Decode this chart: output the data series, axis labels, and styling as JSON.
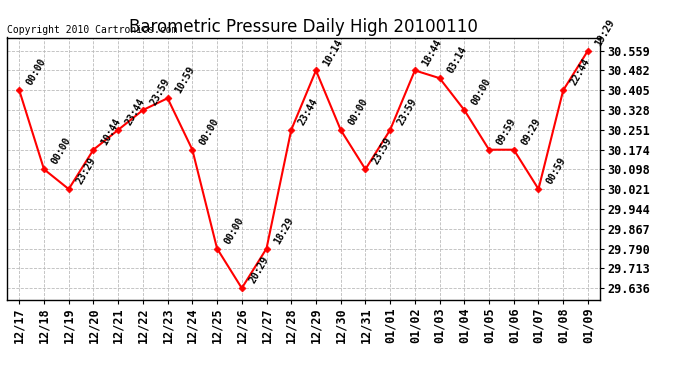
{
  "title": "Barometric Pressure Daily High 20100110",
  "copyright": "Copyright 2010 Cartronics.com",
  "background_color": "#ffffff",
  "plot_bg_color": "#ffffff",
  "line_color": "#ff0000",
  "marker_color": "#ff0000",
  "grid_color": "#bbbbbb",
  "data_points": [
    {
      "date": "12/17",
      "value": 30.405,
      "label": "00:00"
    },
    {
      "date": "12/18",
      "value": 30.098,
      "label": "00:00"
    },
    {
      "date": "12/19",
      "value": 30.021,
      "label": "23:29"
    },
    {
      "date": "12/20",
      "value": 30.174,
      "label": "10:44"
    },
    {
      "date": "12/21",
      "value": 30.251,
      "label": "23:44"
    },
    {
      "date": "12/22",
      "value": 30.328,
      "label": "23:59"
    },
    {
      "date": "12/23",
      "value": 30.374,
      "label": "10:59"
    },
    {
      "date": "12/24",
      "value": 30.174,
      "label": "00:00"
    },
    {
      "date": "12/25",
      "value": 29.79,
      "label": "00:00"
    },
    {
      "date": "12/26",
      "value": 29.636,
      "label": "20:29"
    },
    {
      "date": "12/27",
      "value": 29.79,
      "label": "18:29"
    },
    {
      "date": "12/28",
      "value": 30.251,
      "label": "23:44"
    },
    {
      "date": "12/29",
      "value": 30.482,
      "label": "10:14"
    },
    {
      "date": "12/30",
      "value": 30.251,
      "label": "00:00"
    },
    {
      "date": "12/31",
      "value": 30.098,
      "label": "23:59"
    },
    {
      "date": "01/01",
      "value": 30.251,
      "label": "23:59"
    },
    {
      "date": "01/02",
      "value": 30.482,
      "label": "18:44"
    },
    {
      "date": "01/03",
      "value": 30.452,
      "label": "03:14"
    },
    {
      "date": "01/04",
      "value": 30.328,
      "label": "00:00"
    },
    {
      "date": "01/05",
      "value": 30.174,
      "label": "09:59"
    },
    {
      "date": "01/06",
      "value": 30.174,
      "label": "09:29"
    },
    {
      "date": "01/07",
      "value": 30.021,
      "label": "00:59"
    },
    {
      "date": "01/08",
      "value": 30.405,
      "label": "22:44"
    },
    {
      "date": "01/09",
      "value": 30.559,
      "label": "19:29"
    }
  ],
  "yticks": [
    29.636,
    29.713,
    29.79,
    29.867,
    29.944,
    30.021,
    30.098,
    30.174,
    30.251,
    30.328,
    30.405,
    30.482,
    30.559
  ],
  "ylim": [
    29.59,
    30.61
  ],
  "title_fontsize": 12,
  "tick_fontsize": 8.5,
  "label_fontsize": 7,
  "copyright_fontsize": 7
}
